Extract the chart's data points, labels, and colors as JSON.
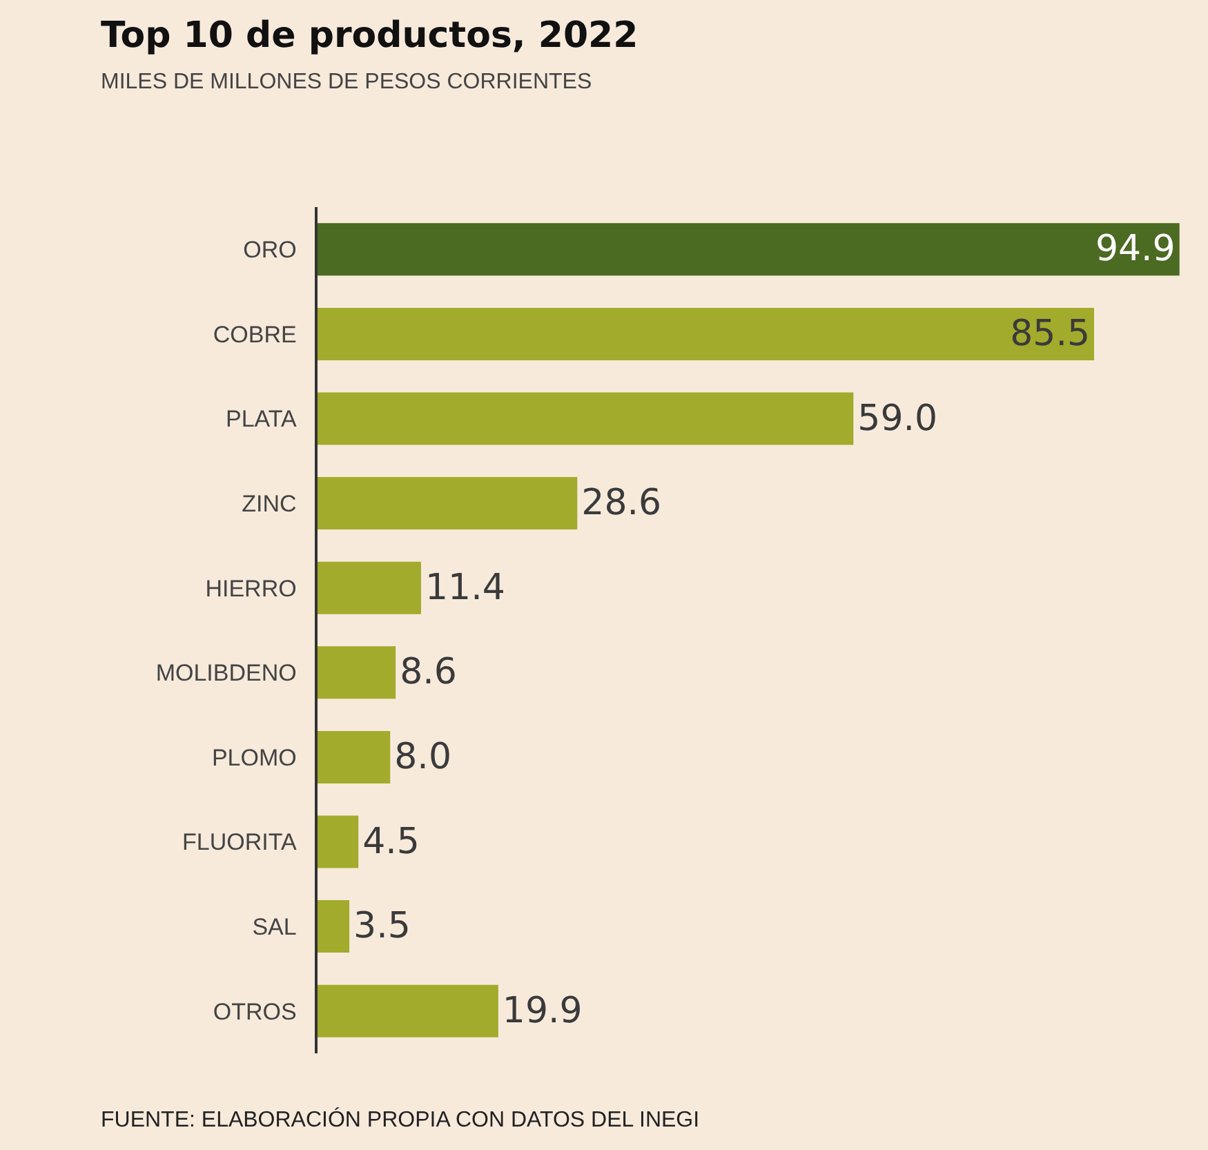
{
  "chart_data": {
    "type": "bar",
    "orientation": "horizontal",
    "title": "Top 10 de productos, 2022",
    "subtitle": "MILES DE MILLONES DE PESOS CORRIENTES",
    "categories": [
      "ORO",
      "COBRE",
      "PLATA",
      "ZINC",
      "HIERRO",
      "MOLIBDENO",
      "PLOMO",
      "FLUORITA",
      "SAL",
      "OTROS"
    ],
    "values": [
      94.9,
      85.5,
      59.0,
      28.6,
      11.4,
      8.6,
      8.0,
      4.5,
      3.5,
      19.9
    ],
    "value_labels": [
      "94.9",
      "85.5",
      "59.0",
      "28.6",
      "11.4",
      "8.6",
      "8.0",
      "4.5",
      "3.5",
      "19.9"
    ],
    "colors": [
      "#4b6a22",
      "#a2ab2c",
      "#a2ab2c",
      "#a2ab2c",
      "#a2ab2c",
      "#a2ab2c",
      "#a2ab2c",
      "#a2ab2c",
      "#a2ab2c",
      "#a2ab2c"
    ],
    "xlim": [
      0,
      95
    ],
    "tick_labels": "y",
    "annotations": [
      "FUENTE: ELABORACIÓN PROPIA CON DATOS DEL INEGI"
    ]
  }
}
